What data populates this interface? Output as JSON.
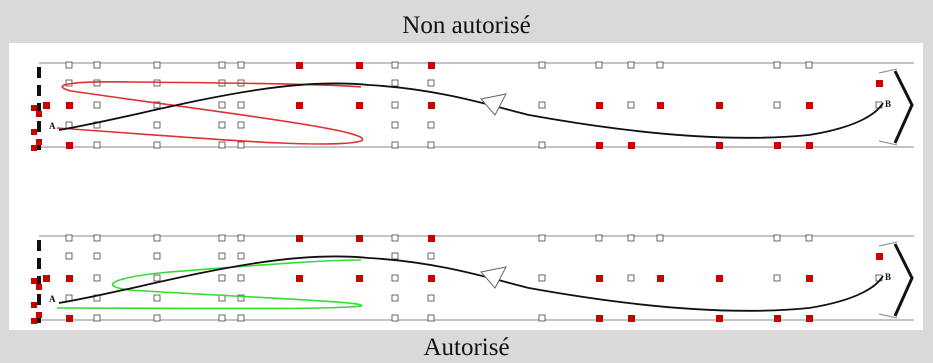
{
  "captions": {
    "top": "Non autorisé",
    "bottom": "Autorisé"
  },
  "points": {
    "start": "A",
    "end": "B"
  },
  "colors": {
    "background": "#d9d9d9",
    "cone_filled": "#cc0000",
    "cone_empty": "#ffffff",
    "path_main": "#111111",
    "illegal_loop": "#e03030",
    "legal_loop": "#33dd33"
  },
  "diagrams": [
    {
      "id": "top",
      "caption_key": "captions.top",
      "loop_color_key": "illegal_loop"
    },
    {
      "id": "bottom",
      "caption_key": "captions.bottom",
      "loop_color_key": "legal_loop"
    }
  ]
}
